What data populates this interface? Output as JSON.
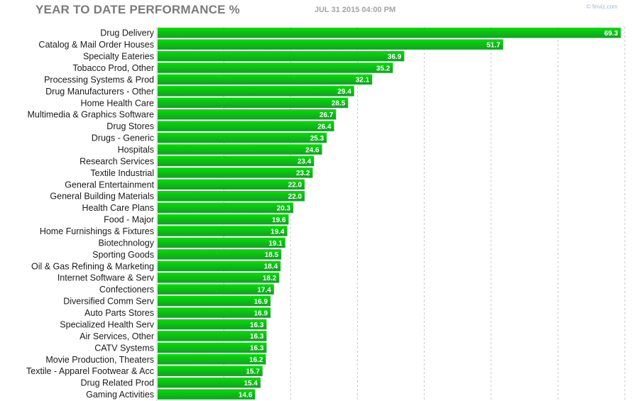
{
  "header": {
    "title": "YEAR TO DATE PERFORMANCE %",
    "timestamp": "JUL 31 2015 04:00 PM",
    "brand": "© finviz.com"
  },
  "colors": {
    "bar_top": "#00e000",
    "bar_bottom": "#1b9a2e",
    "grid": "#c8c8c8",
    "label_text": "#1a1a1a",
    "value_text": "#ffffff"
  },
  "chart_data": {
    "type": "bar",
    "orientation": "horizontal",
    "title": "YEAR TO DATE PERFORMANCE %",
    "xlabel": "",
    "ylabel": "",
    "xlim": [
      0,
      70
    ],
    "grid": true,
    "categories": [
      "Drug Delivery",
      "Catalog & Mail Order Houses",
      "Specialty Eateries",
      "Tobacco Prod, Other",
      "Processing Systems & Prod",
      "Drug Manufacturers - Other",
      "Home Health Care",
      "Multimedia & Graphics Software",
      "Drug Stores",
      "Drugs - Generic",
      "Hospitals",
      "Research Services",
      "Textile Industrial",
      "General Entertainment",
      "General Building Materials",
      "Health Care Plans",
      "Food - Major",
      "Home Furnishings & Fixtures",
      "Biotechnology",
      "Sporting Goods",
      "Oil & Gas Refining & Marketing",
      "Internet Software & Serv",
      "Confectioners",
      "Diversified Comm Serv",
      "Auto Parts Stores",
      "Specialized Health Serv",
      "Air Services, Other",
      "CATV Systems",
      "Movie Production, Theaters",
      "Textile - Apparel Footwear & Acc",
      "Drug Related Prod",
      "Gaming Activities"
    ],
    "values": [
      69.3,
      51.7,
      36.9,
      35.2,
      32.1,
      29.4,
      28.5,
      26.7,
      26.4,
      25.3,
      24.6,
      23.4,
      23.2,
      22.0,
      22.0,
      20.3,
      19.6,
      19.4,
      19.1,
      18.5,
      18.4,
      18.2,
      17.4,
      16.9,
      16.9,
      16.3,
      16.3,
      16.3,
      16.2,
      15.7,
      15.4,
      14.6
    ]
  }
}
